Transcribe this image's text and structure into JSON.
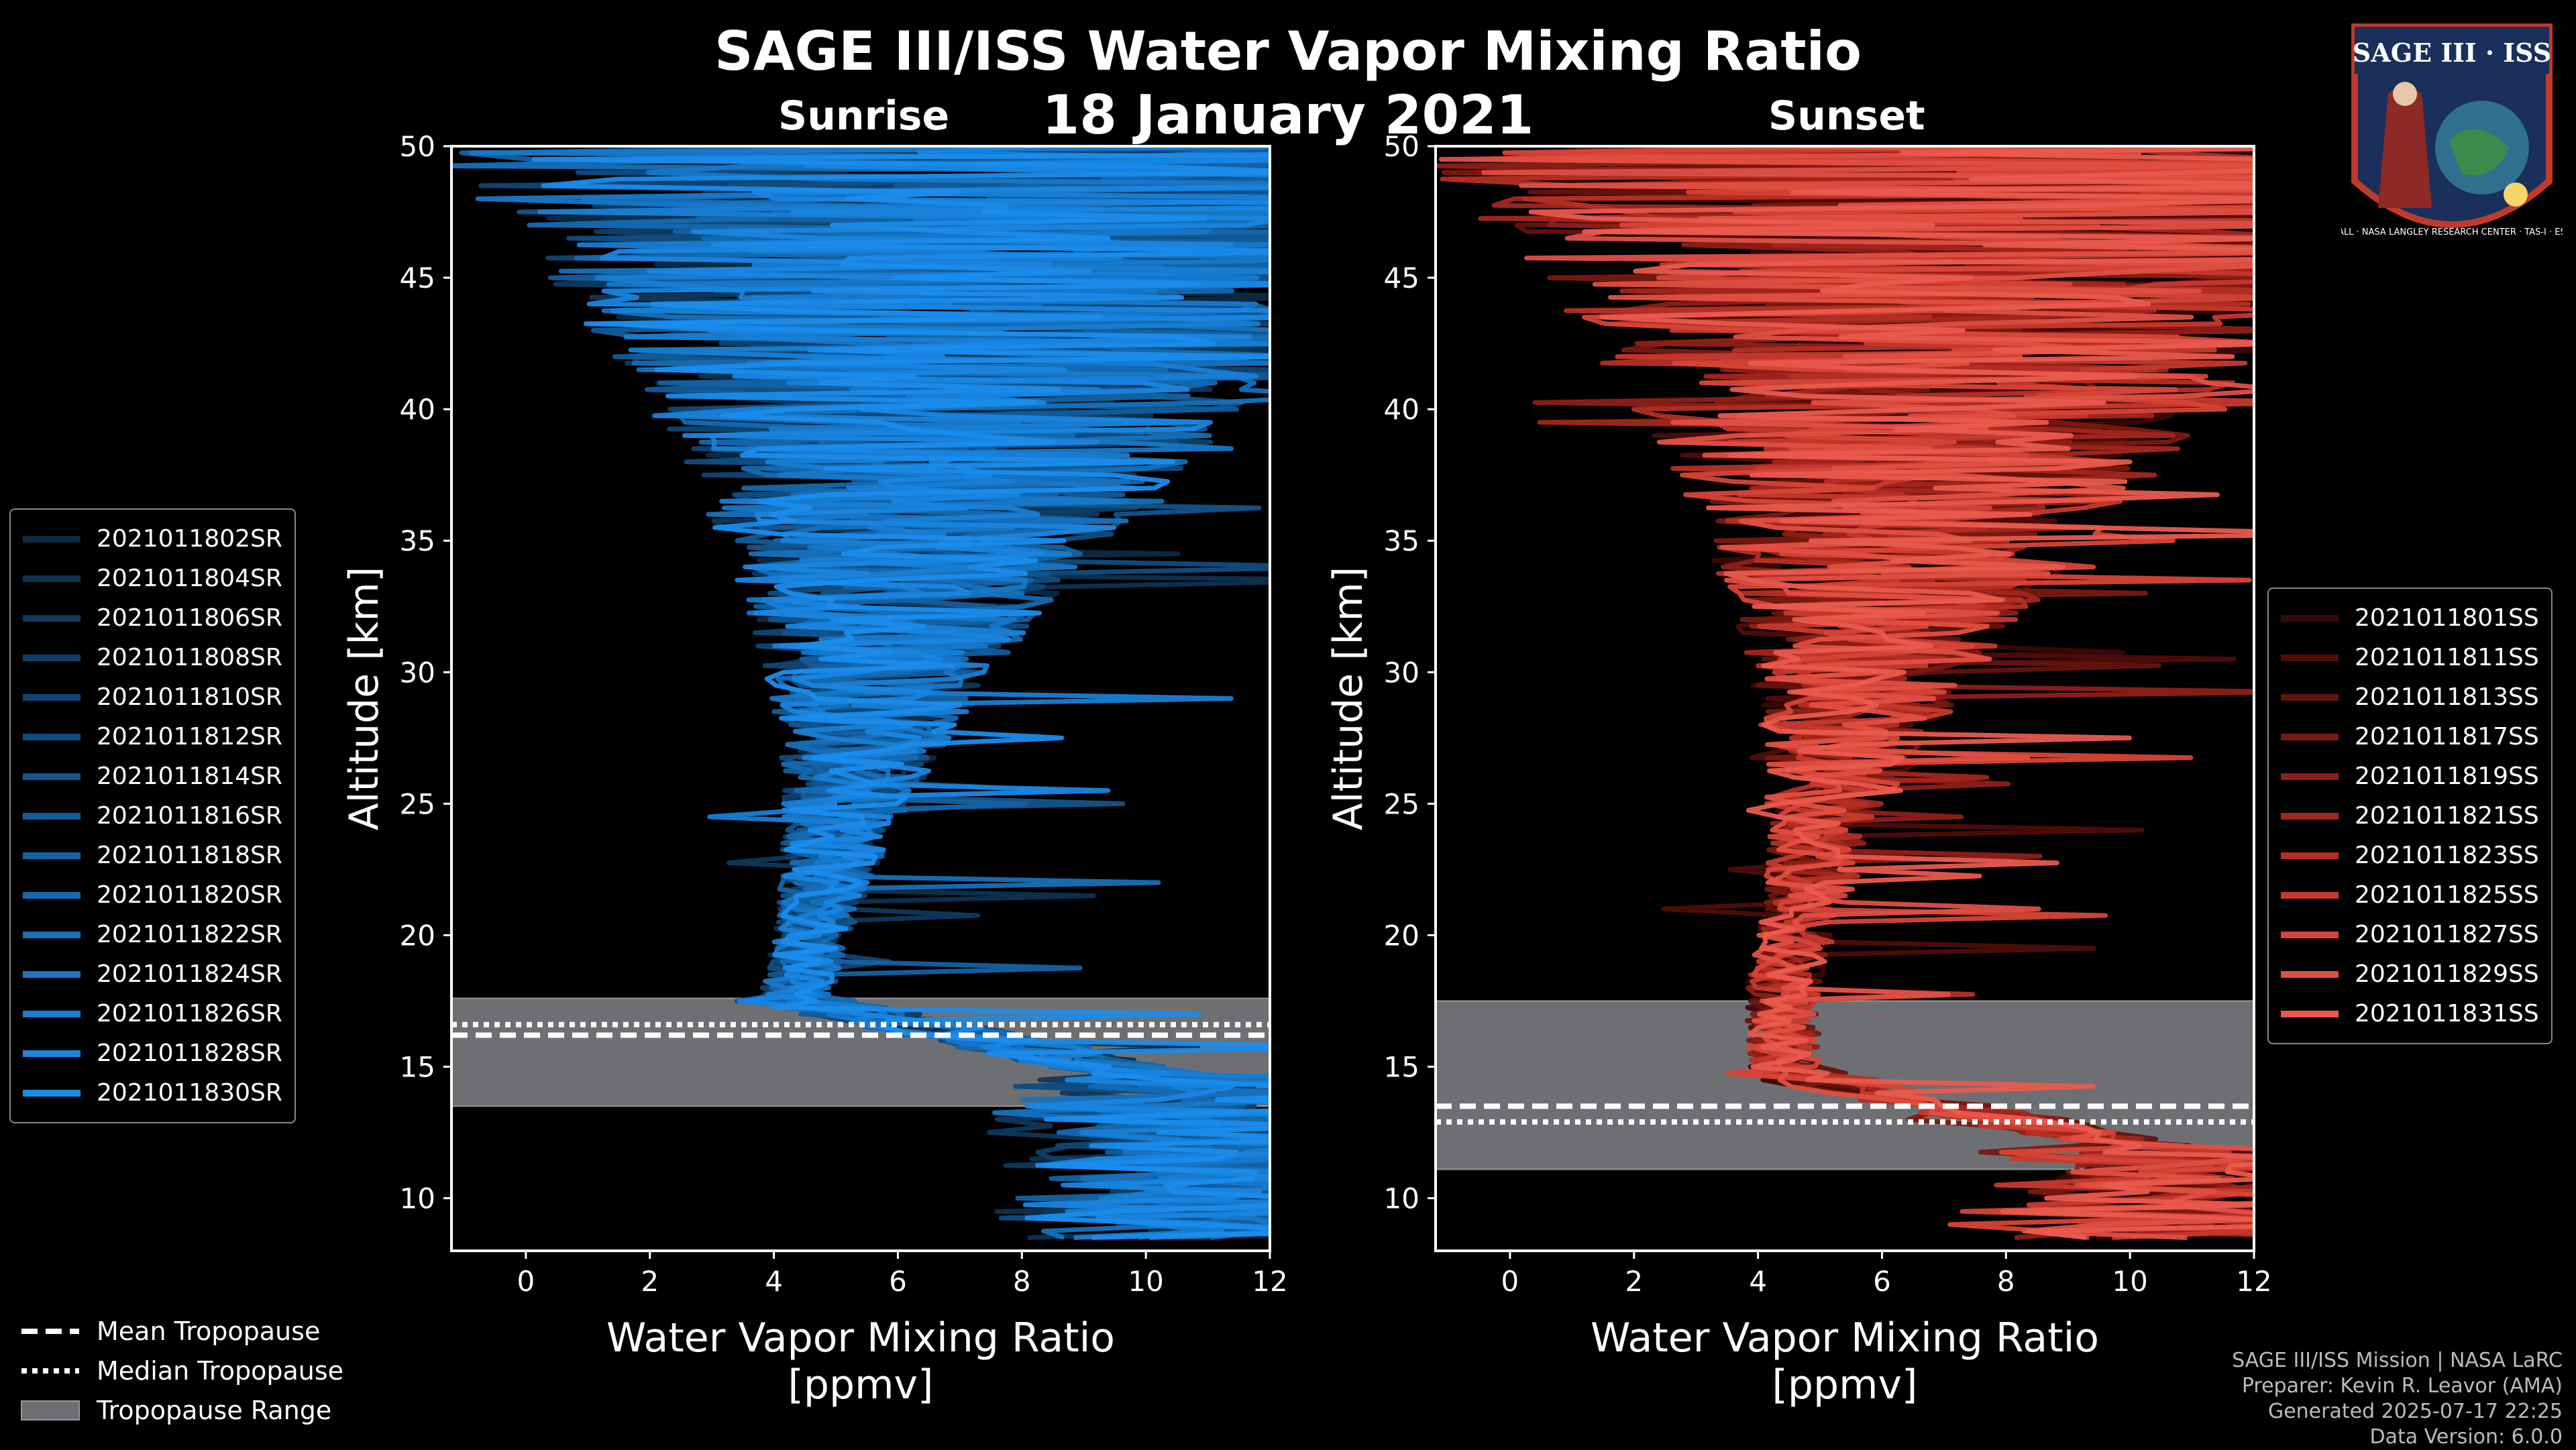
{
  "title": "SAGE III/ISS Water Vapor Mixing Ratio",
  "date": "18 January 2021",
  "panels": {
    "sunrise": {
      "title": "Sunrise",
      "color": "#1a8cd8"
    },
    "sunset": {
      "title": "Sunset",
      "color": "#e85a4f"
    }
  },
  "chart_data": [
    {
      "type": "line",
      "title": "Sunrise",
      "xlabel": "Water Vapor Mixing Ratio",
      "xlabel2": "[ppmv]",
      "ylabel": "Altitude [km]",
      "xlim": [
        -1.2,
        12
      ],
      "ylim": [
        8,
        50
      ],
      "xticks": [
        "0",
        "2",
        "4",
        "6",
        "8",
        "10",
        "12"
      ],
      "yticks": [
        "10",
        "15",
        "20",
        "25",
        "30",
        "35",
        "40",
        "45",
        "50"
      ],
      "tropopause": {
        "mean": 16.2,
        "median": 16.6,
        "range": [
          13.5,
          17.6
        ]
      },
      "legend": [
        "2021011802SR",
        "2021011804SR",
        "2021011806SR",
        "2021011808SR",
        "2021011810SR",
        "2021011812SR",
        "2021011814SR",
        "2021011816SR",
        "2021011818SR",
        "2021011820SR",
        "2021011822SR",
        "2021011824SR",
        "2021011826SR",
        "2021011828SR",
        "2021011830SR"
      ],
      "legend_colors": [
        "#0c2a44",
        "#0d3150",
        "#0e385c",
        "#0f3f68",
        "#104674",
        "#114d80",
        "#12548c",
        "#135b98",
        "#1462a4",
        "#1569b0",
        "#1670bc",
        "#1777c8",
        "#187ed4",
        "#1985e0",
        "#1a8cec"
      ]
    },
    {
      "type": "line",
      "title": "Sunset",
      "xlabel": "Water Vapor Mixing Ratio",
      "xlabel2": "[ppmv]",
      "ylabel": "Altitude [km]",
      "xlim": [
        -1.2,
        12
      ],
      "ylim": [
        8,
        50
      ],
      "xticks": [
        "0",
        "2",
        "4",
        "6",
        "8",
        "10",
        "12"
      ],
      "yticks": [
        "10",
        "15",
        "20",
        "25",
        "30",
        "35",
        "40",
        "45",
        "50"
      ],
      "tropopause": {
        "mean": 13.5,
        "median": 12.9,
        "range": [
          11.1,
          17.5
        ]
      },
      "legend": [
        "2021011801SS",
        "2021011811SS",
        "2021011813SS",
        "2021011817SS",
        "2021011819SS",
        "2021011821SS",
        "2021011823SS",
        "2021011825SS",
        "2021011827SS",
        "2021011829SS",
        "2021011831SS"
      ],
      "legend_colors": [
        "#3a0806",
        "#4f0d0a",
        "#64130e",
        "#791912",
        "#8e1f17",
        "#a3261d",
        "#b52f25",
        "#c6392d",
        "#d64437",
        "#e04f42",
        "#e95a4d"
      ]
    }
  ],
  "bottom_legend": {
    "mean": "Mean Tropopause",
    "median": "Median Tropopause",
    "range": "Tropopause Range"
  },
  "credits": {
    "line1": "SAGE III/ISS Mission | NASA LaRC",
    "line2": "Preparer: Kevin R. Leavor (AMA)",
    "line3": "Generated 2025-07-17 22:25",
    "line4": "Data Version: 6.0.0"
  },
  "logo": {
    "top": "SAGE III · ISS",
    "bottom": "BALL · NASA LANGLEY RESEARCH CENTER · TAS-I · ESA"
  }
}
